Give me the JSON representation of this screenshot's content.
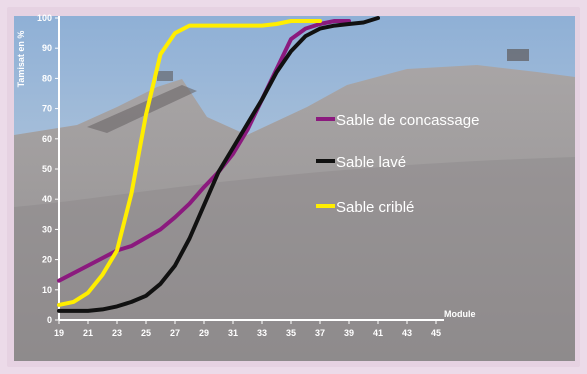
{
  "chart_data": {
    "type": "line",
    "title": "",
    "xlabel": "Module",
    "ylabel": "Tamisat en %",
    "xlim": [
      19,
      45
    ],
    "ylim": [
      0,
      100
    ],
    "x_ticks": [
      19,
      21,
      23,
      25,
      27,
      29,
      31,
      33,
      35,
      37,
      39,
      41,
      43,
      45
    ],
    "y_ticks": [
      0,
      10,
      20,
      30,
      40,
      50,
      60,
      70,
      80,
      90,
      100
    ],
    "grid": false,
    "legend_position": "right",
    "series": [
      {
        "name": "Sable de concassage",
        "color": "#8b1a7e",
        "points": [
          [
            19,
            13
          ],
          [
            21,
            18
          ],
          [
            23,
            23
          ],
          [
            24,
            24.5
          ],
          [
            26,
            30
          ],
          [
            27,
            34
          ],
          [
            28,
            38.5
          ],
          [
            29,
            44
          ],
          [
            30,
            49
          ],
          [
            31,
            55
          ],
          [
            32,
            63
          ],
          [
            33,
            73
          ],
          [
            34,
            83
          ],
          [
            35,
            93
          ],
          [
            36,
            96.5
          ],
          [
            37,
            98
          ],
          [
            38,
            99
          ],
          [
            39,
            99
          ]
        ]
      },
      {
        "name": "Sable lavé",
        "color": "#111111",
        "points": [
          [
            19,
            3
          ],
          [
            21,
            3
          ],
          [
            22,
            3.5
          ],
          [
            23,
            4.5
          ],
          [
            24,
            6
          ],
          [
            25,
            8
          ],
          [
            26,
            12
          ],
          [
            27,
            18
          ],
          [
            28,
            27
          ],
          [
            29,
            38
          ],
          [
            30,
            49
          ],
          [
            31,
            57
          ],
          [
            32,
            65
          ],
          [
            33,
            73
          ],
          [
            34,
            82
          ],
          [
            35,
            89
          ],
          [
            36,
            94
          ],
          [
            37,
            96.5
          ],
          [
            38,
            97.5
          ],
          [
            39,
            98
          ],
          [
            40,
            98.5
          ],
          [
            41,
            100
          ]
        ]
      },
      {
        "name": "Sable criblé",
        "color": "#ffee00",
        "points": [
          [
            19,
            5
          ],
          [
            20,
            6
          ],
          [
            21,
            9
          ],
          [
            22,
            15
          ],
          [
            23,
            23
          ],
          [
            24,
            42
          ],
          [
            25,
            68
          ],
          [
            26,
            88
          ],
          [
            27,
            95
          ],
          [
            28,
            97.5
          ],
          [
            29,
            97.5
          ],
          [
            30,
            97.5
          ],
          [
            31,
            97.5
          ],
          [
            32,
            97.5
          ],
          [
            33,
            97.5
          ],
          [
            34,
            98
          ],
          [
            35,
            99
          ],
          [
            36,
            99
          ],
          [
            37,
            99
          ]
        ]
      }
    ]
  }
}
